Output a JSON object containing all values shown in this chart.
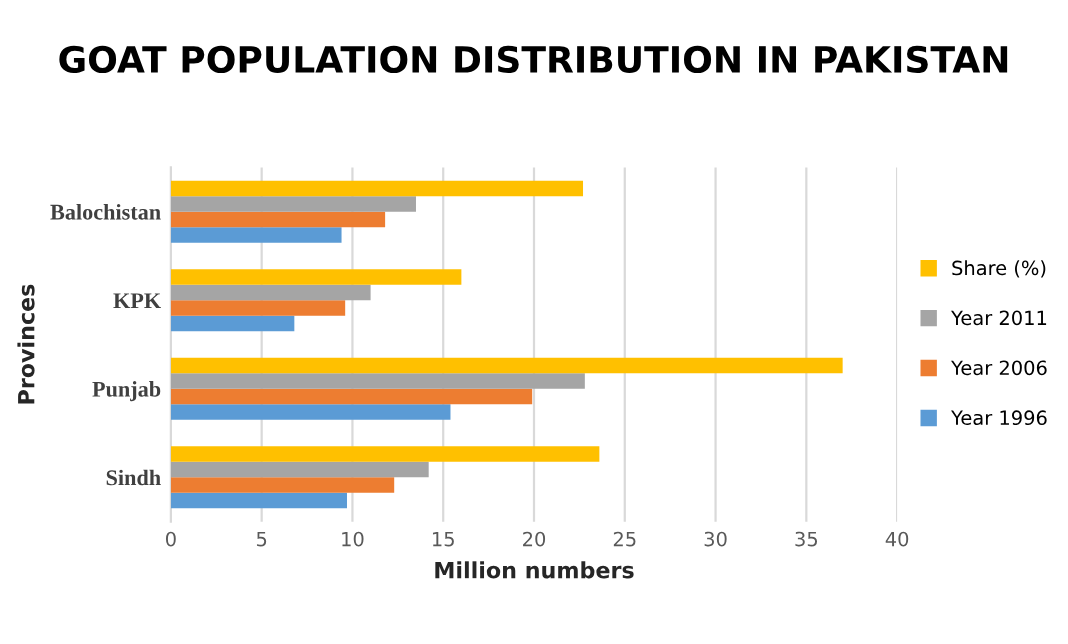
{
  "chart_data": {
    "type": "bar",
    "orientation": "horizontal",
    "title": "GOAT POPULATION DISTRIBUTION IN PAKISTAN",
    "xlabel": "Million numbers",
    "ylabel": "Provinces",
    "categories": [
      "Balochistan",
      "KPK",
      "Punjab",
      "Sindh"
    ],
    "series": [
      {
        "name": "Year 1996",
        "color": "#5b9bd5",
        "values": [
          9.4,
          6.8,
          15.4,
          9.7
        ]
      },
      {
        "name": "Year 2006",
        "color": "#ed7d31",
        "values": [
          11.8,
          9.6,
          19.9,
          12.3
        ]
      },
      {
        "name": "Year 2011",
        "color": "#a5a5a5",
        "values": [
          13.5,
          11.0,
          22.8,
          14.2
        ]
      },
      {
        "name": "Share (%)",
        "color": "#ffc000",
        "values": [
          22.7,
          16.0,
          37.0,
          23.6
        ]
      }
    ],
    "xlim": [
      0,
      40
    ],
    "xticks": [
      0,
      5,
      10,
      15,
      20,
      25,
      30,
      35,
      40
    ],
    "grid": "x",
    "legend": "right"
  }
}
